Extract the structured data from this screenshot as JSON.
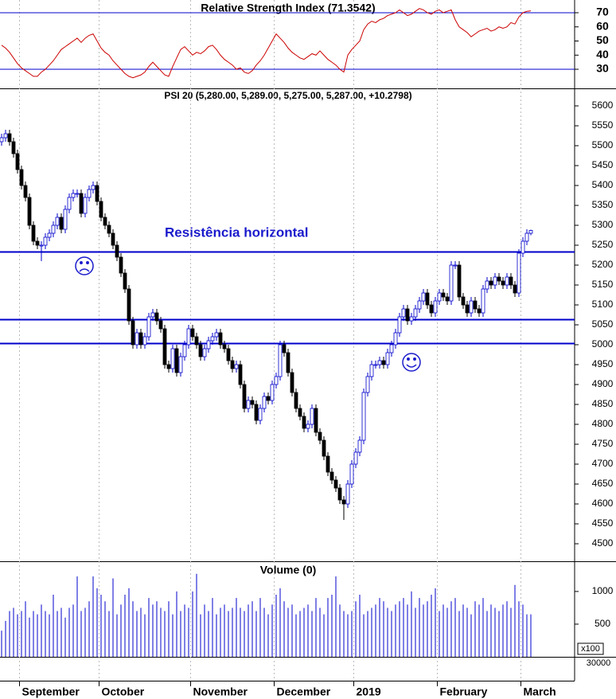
{
  "chart_data": [
    {
      "type": "line",
      "title": "Relative Strength Index (71.3542)",
      "color": "#cc0000",
      "hline_color": "#0000cc",
      "ylim": [
        16.5,
        79
      ],
      "yticks": [
        30,
        40,
        50,
        60,
        70
      ],
      "hlines": [
        70,
        30
      ],
      "values": [
        47,
        45,
        42,
        38,
        34,
        31,
        29,
        27,
        25,
        25,
        28,
        30,
        33,
        36,
        40,
        44,
        46,
        48,
        50,
        52,
        49,
        52,
        54,
        55,
        50,
        45,
        42,
        40,
        36,
        33,
        30,
        27,
        25,
        24,
        25,
        26,
        28,
        32,
        35,
        32,
        29,
        26,
        25,
        32,
        38,
        44,
        46,
        43,
        40,
        42,
        41,
        43,
        46,
        47,
        44,
        40,
        37,
        35,
        33,
        30,
        31,
        28,
        27,
        29,
        33,
        36,
        40,
        45,
        50,
        55,
        52,
        49,
        45,
        42,
        40,
        38,
        37,
        39,
        41,
        40,
        43,
        40,
        37,
        35,
        33,
        30,
        28,
        40,
        44,
        47,
        50,
        58,
        62,
        64,
        63,
        65,
        66,
        68,
        69,
        70,
        72,
        70,
        68,
        69,
        71,
        73,
        72,
        70,
        69,
        71,
        72,
        70,
        71,
        72,
        65,
        60,
        58,
        56,
        53,
        55,
        57,
        58,
        59,
        57,
        58,
        60,
        59,
        60,
        63,
        62,
        67,
        70,
        71,
        71.3542
      ]
    },
    {
      "type": "candlestick",
      "title": "PSI 20 (5,280.00, 5,289.00, 5,275.00, 5,287.00, +10.2798)",
      "up_color": "#0000cc",
      "down_color": "#000000",
      "hline_color": "#0000cc",
      "ylim": [
        4456,
        5642
      ],
      "yticks": [
        4500,
        4550,
        4600,
        4650,
        4700,
        4750,
        4800,
        4850,
        4900,
        4950,
        5000,
        5050,
        5100,
        5150,
        5200,
        5250,
        5300,
        5350,
        5400,
        5450,
        5500,
        5550,
        5600
      ],
      "hlines": [
        5233,
        5063,
        5003
      ],
      "annotation": "Resistência horizontal",
      "categories": [
        null,
        null,
        null,
        null,
        null,
        "September",
        null,
        null,
        null,
        null,
        null,
        null,
        null,
        null,
        null,
        null,
        null,
        null,
        null,
        null,
        null,
        null,
        null,
        null,
        null,
        "October",
        null,
        null,
        null,
        null,
        null,
        null,
        null,
        null,
        null,
        null,
        null,
        null,
        null,
        null,
        null,
        null,
        null,
        null,
        null,
        null,
        null,
        null,
        "November",
        null,
        null,
        null,
        null,
        null,
        null,
        null,
        null,
        null,
        null,
        null,
        null,
        null,
        null,
        null,
        null,
        null,
        null,
        null,
        null,
        "December",
        null,
        null,
        null,
        null,
        null,
        null,
        null,
        null,
        null,
        null,
        null,
        null,
        null,
        null,
        null,
        null,
        null,
        null,
        null,
        "2019",
        null,
        null,
        null,
        null,
        null,
        null,
        null,
        null,
        null,
        null,
        null,
        null,
        null,
        null,
        null,
        null,
        null,
        null,
        null,
        null,
        "February",
        null,
        null,
        null,
        null,
        null,
        null,
        null,
        null,
        null,
        null,
        null,
        null,
        null,
        null,
        null,
        null,
        null,
        null,
        null,
        null,
        "March",
        null,
        null
      ],
      "open": [
        5510,
        5520,
        5530,
        5510,
        5480,
        5440,
        5400,
        5370,
        5300,
        5260,
        5250,
        5250,
        5270,
        5280,
        5300,
        5320,
        5290,
        5340,
        5370,
        5380,
        5380,
        5330,
        5370,
        5390,
        5400,
        5360,
        5320,
        5300,
        5280,
        5250,
        5220,
        5180,
        5140,
        5060,
        5000,
        5030,
        5000,
        5020,
        5070,
        5080,
        5060,
        5040,
        4950,
        4940,
        4990,
        4930,
        4970,
        5000,
        5040,
        5020,
        5000,
        4970,
        4990,
        5010,
        5020,
        5030,
        5000,
        4990,
        4960,
        4940,
        4950,
        4900,
        4840,
        4860,
        4850,
        4810,
        4840,
        4870,
        4860,
        4900,
        4920,
        5000,
        4980,
        4930,
        4880,
        4840,
        4820,
        4790,
        4800,
        4840,
        4780,
        4760,
        4720,
        4680,
        4660,
        4640,
        4610,
        4600,
        4650,
        4700,
        4730,
        4760,
        4880,
        4920,
        4950,
        4950,
        4960,
        4950,
        4980,
        5000,
        5030,
        5070,
        5090,
        5060,
        5070,
        5090,
        5110,
        5130,
        5100,
        5080,
        5110,
        5130,
        5120,
        5110,
        5200,
        5200,
        5120,
        5100,
        5080,
        5110,
        5090,
        5080,
        5140,
        5160,
        5150,
        5170,
        5160,
        5150,
        5170,
        5150,
        5130,
        5230,
        5260,
        5280
      ],
      "high": [
        5530,
        5540,
        5540,
        5520,
        5490,
        5450,
        5410,
        5380,
        5310,
        5270,
        5260,
        5280,
        5290,
        5310,
        5330,
        5330,
        5350,
        5380,
        5390,
        5390,
        5390,
        5380,
        5400,
        5410,
        5410,
        5370,
        5330,
        5310,
        5290,
        5260,
        5230,
        5190,
        5150,
        5070,
        5040,
        5040,
        5030,
        5080,
        5090,
        5090,
        5070,
        5050,
        4960,
        5000,
        5000,
        4980,
        5010,
        5050,
        5050,
        5030,
        5010,
        5000,
        5020,
        5030,
        5040,
        5040,
        5010,
        5000,
        4970,
        4960,
        4960,
        4910,
        4870,
        4870,
        4860,
        4850,
        4880,
        4880,
        4910,
        4930,
        5010,
        5010,
        4990,
        4940,
        4890,
        4850,
        4830,
        4810,
        4850,
        4850,
        4790,
        4770,
        4730,
        4690,
        4670,
        4650,
        4620,
        4660,
        4710,
        4740,
        4770,
        4890,
        4930,
        4960,
        4960,
        4970,
        4970,
        4990,
        5010,
        5040,
        5080,
        5100,
        5100,
        5080,
        5100,
        5120,
        5140,
        5140,
        5110,
        5120,
        5140,
        5140,
        5130,
        5210,
        5210,
        5210,
        5130,
        5110,
        5120,
        5120,
        5100,
        5150,
        5170,
        5170,
        5180,
        5180,
        5170,
        5180,
        5180,
        5160,
        5240,
        5270,
        5290,
        5289
      ],
      "low": [
        5500,
        5510,
        5500,
        5470,
        5430,
        5390,
        5360,
        5290,
        5250,
        5240,
        5210,
        5240,
        5260,
        5270,
        5290,
        5280,
        5280,
        5330,
        5360,
        5370,
        5320,
        5320,
        5360,
        5380,
        5350,
        5310,
        5290,
        5270,
        5240,
        5210,
        5170,
        5130,
        5050,
        4990,
        4990,
        4990,
        4990,
        5010,
        5060,
        5050,
        5030,
        4940,
        4930,
        4930,
        4920,
        4920,
        4960,
        4990,
        5010,
        4990,
        4960,
        4960,
        4980,
        5000,
        5010,
        4990,
        4980,
        4950,
        4930,
        4930,
        4890,
        4830,
        4830,
        4840,
        4800,
        4800,
        4830,
        4850,
        4850,
        4890,
        4910,
        4970,
        4920,
        4870,
        4830,
        4810,
        4780,
        4780,
        4790,
        4770,
        4750,
        4710,
        4670,
        4650,
        4630,
        4600,
        4560,
        4590,
        4640,
        4690,
        4720,
        4750,
        4870,
        4910,
        4940,
        4940,
        4940,
        4940,
        4970,
        4990,
        5020,
        5060,
        5050,
        5050,
        5060,
        5080,
        5100,
        5090,
        5070,
        5070,
        5100,
        5110,
        5100,
        5100,
        5190,
        5110,
        5090,
        5070,
        5070,
        5080,
        5070,
        5070,
        5130,
        5140,
        5140,
        5150,
        5140,
        5140,
        5140,
        5120,
        5120,
        5220,
        5250,
        5275
      ],
      "close": [
        5520,
        5530,
        5510,
        5480,
        5440,
        5400,
        5370,
        5300,
        5260,
        5250,
        5250,
        5270,
        5280,
        5300,
        5320,
        5290,
        5340,
        5370,
        5380,
        5380,
        5330,
        5370,
        5390,
        5400,
        5360,
        5320,
        5300,
        5280,
        5250,
        5220,
        5180,
        5140,
        5060,
        5000,
        5030,
        5000,
        5020,
        5070,
        5080,
        5060,
        5040,
        4950,
        4940,
        4990,
        4930,
        4970,
        5000,
        5040,
        5020,
        5000,
        4970,
        4990,
        5010,
        5020,
        5030,
        5000,
        4990,
        4960,
        4940,
        4950,
        4900,
        4840,
        4860,
        4850,
        4810,
        4840,
        4870,
        4860,
        4900,
        4920,
        5000,
        4980,
        4930,
        4880,
        4840,
        4820,
        4790,
        4800,
        4840,
        4780,
        4760,
        4720,
        4680,
        4660,
        4640,
        4610,
        4600,
        4650,
        4700,
        4730,
        4760,
        4880,
        4920,
        4950,
        4950,
        4960,
        4950,
        4980,
        5000,
        5030,
        5070,
        5090,
        5060,
        5070,
        5090,
        5110,
        5130,
        5100,
        5080,
        5110,
        5130,
        5120,
        5110,
        5200,
        5200,
        5120,
        5100,
        5080,
        5110,
        5090,
        5080,
        5140,
        5160,
        5150,
        5170,
        5160,
        5150,
        5170,
        5150,
        5130,
        5230,
        5260,
        5280,
        5287
      ]
    },
    {
      "type": "bar",
      "title": "Volume (0)",
      "color": "#0000cc",
      "unit_label": "x100",
      "scale_label": "30000",
      "ylim": [
        0,
        1450
      ],
      "yticks": [
        500,
        1000
      ],
      "values": [
        400,
        550,
        700,
        750,
        650,
        700,
        850,
        600,
        700,
        650,
        800,
        700,
        650,
        950,
        700,
        750,
        600,
        750,
        800,
        1230,
        700,
        750,
        850,
        1230,
        1050,
        950,
        850,
        700,
        1200,
        650,
        800,
        950,
        1050,
        850,
        700,
        750,
        650,
        900,
        800,
        850,
        750,
        700,
        850,
        650,
        1000,
        700,
        800,
        750,
        1000,
        1270,
        650,
        800,
        700,
        900,
        650,
        750,
        800,
        700,
        750,
        900,
        750,
        700,
        800,
        850,
        700,
        900,
        750,
        650,
        800,
        950,
        1050,
        850,
        750,
        800,
        650,
        700,
        750,
        800,
        700,
        900,
        750,
        650,
        900,
        950,
        1230,
        800,
        700,
        650,
        700,
        850,
        950,
        650,
        700,
        750,
        800,
        900,
        850,
        750,
        700,
        800,
        850,
        900,
        800,
        1000,
        750,
        900,
        800,
        850,
        950,
        1050,
        700,
        800,
        750,
        850,
        900,
        700,
        800,
        750,
        650,
        850,
        800,
        900,
        700,
        800,
        750,
        700,
        800,
        850,
        750,
        1100,
        850,
        800,
        650,
        650
      ]
    }
  ]
}
